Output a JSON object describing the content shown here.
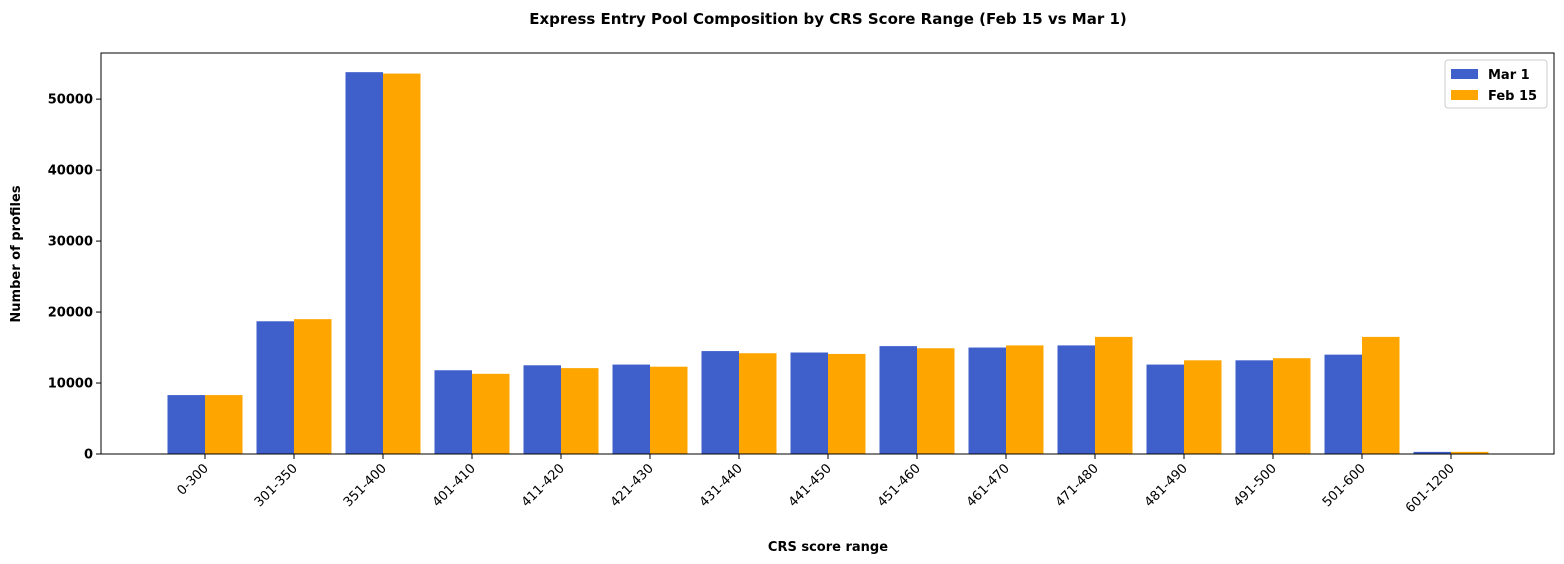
{
  "chart_data": {
    "type": "bar",
    "title": "Express Entry Pool Composition by CRS Score Range (Feb 15 vs Mar 1)",
    "xlabel": "CRS score range",
    "ylabel": "Number of profiles",
    "categories": [
      "0-300",
      "301-350",
      "351-400",
      "401-410",
      "411-420",
      "421-430",
      "431-440",
      "441-450",
      "451-460",
      "461-470",
      "471-480",
      "481-490",
      "491-500",
      "501-600",
      "601-1200"
    ],
    "series": [
      {
        "name": "Mar 1",
        "color": "#3f5fcb",
        "values": [
          8300,
          18700,
          53800,
          11800,
          12500,
          12600,
          14500,
          14300,
          15200,
          15000,
          15300,
          12600,
          13200,
          14000,
          300
        ]
      },
      {
        "name": "Feb 15",
        "color": "#ffa500",
        "values": [
          8300,
          19000,
          53600,
          11300,
          12100,
          12300,
          14200,
          14100,
          14900,
          15300,
          16500,
          13200,
          13500,
          16500,
          300
        ]
      }
    ],
    "ylim": [
      0,
      56500
    ],
    "yticks": [
      0,
      10000,
      20000,
      30000,
      40000,
      50000
    ],
    "grid": false,
    "legend_position": "top-right"
  }
}
